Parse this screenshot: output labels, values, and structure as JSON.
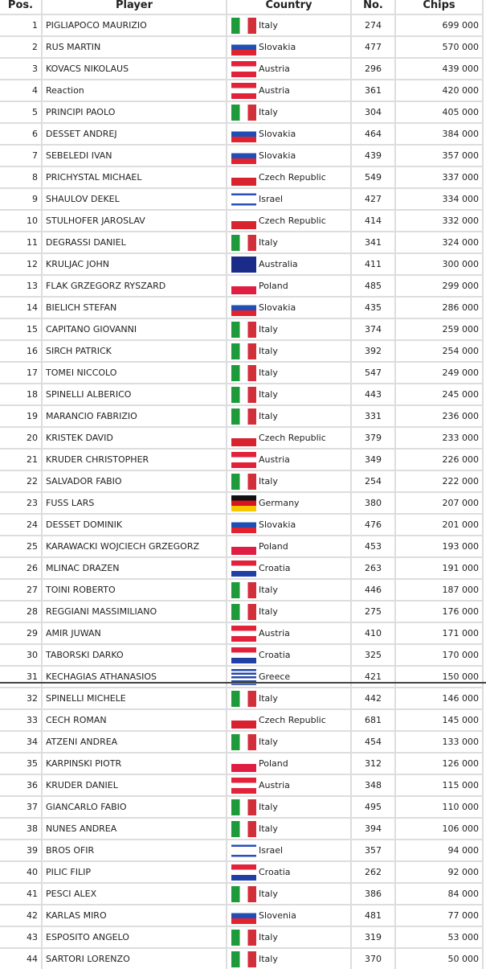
{
  "headers": [
    "Pos.",
    "Player",
    "Country",
    "No.",
    "Chips"
  ],
  "flag_colors": {
    "Italy": "linear-gradient(90deg,#1e9a3a 0 34%,#fff 34% 66%,#d32f3a 66%)",
    "Slovakia": "linear-gradient(#fff 0 33%,#1f4fb5 33% 66%,#e2222f 66%)",
    "Austria": "linear-gradient(#e2223a 0 33%,#fff 33% 66%,#e2223a 66%)",
    "Czech Republic": "linear-gradient(#fff 0 50%,#d8232f 50%)",
    "Israel": "linear-gradient(#fff 0 12%,#2a4fb8 12% 24%,#fff 24% 76%,#2a4fb8 76% 88%,#fff 88%)",
    "Australia": "#1a2b8a",
    "Poland": "linear-gradient(#fff 0 50%,#e01e44 50%)",
    "Germany": "linear-gradient(#111 0 33%,#d8141e 33% 66%,#f7c800 66%)",
    "Croatia": "linear-gradient(#e2223a 0 33%,#fff 33% 66%,#1f3fa5 66%)",
    "Greece": "repeating-linear-gradient(#2346a8 0 2.3px,#fff 2.3px 4.6px)",
    "Slovenia": "linear-gradient(#fff 0 33%,#1f4fb5 33% 66%,#e2222f 66%)"
  },
  "rows": [
    [
      "1",
      "PIGLIAPOCO MAURIZIO",
      "Italy",
      "274",
      "699 000"
    ],
    [
      "2",
      "RUS MARTIN",
      "Slovakia",
      "477",
      "570 000"
    ],
    [
      "3",
      "KOVACS NIKOLAUS",
      "Austria",
      "296",
      "439 000"
    ],
    [
      "4",
      "Reaction",
      "Austria",
      "361",
      "420 000"
    ],
    [
      "5",
      "PRINCIPI PAOLO",
      "Italy",
      "304",
      "405 000"
    ],
    [
      "6",
      "DESSET ANDREJ",
      "Slovakia",
      "464",
      "384 000"
    ],
    [
      "7",
      "SEBELEDI IVAN",
      "Slovakia",
      "439",
      "357 000"
    ],
    [
      "8",
      "PRICHYSTAL MICHAEL",
      "Czech Republic",
      "549",
      "337 000"
    ],
    [
      "9",
      "SHAULOV DEKEL",
      "Israel",
      "427",
      "334 000"
    ],
    [
      "10",
      "STULHOFER JAROSLAV",
      "Czech Republic",
      "414",
      "332 000"
    ],
    [
      "11",
      "DEGRASSI DANIEL",
      "Italy",
      "341",
      "324 000"
    ],
    [
      "12",
      "KRULJAC JOHN",
      "Australia",
      "411",
      "300 000"
    ],
    [
      "13",
      "FLAK GRZEGORZ RYSZARD",
      "Poland",
      "485",
      "299 000"
    ],
    [
      "14",
      "BIELICH STEFAN",
      "Slovakia",
      "435",
      "286 000"
    ],
    [
      "15",
      "CAPITANO GIOVANNI",
      "Italy",
      "374",
      "259 000"
    ],
    [
      "16",
      "SIRCH PATRICK",
      "Italy",
      "392",
      "254 000"
    ],
    [
      "17",
      "TOMEI NICCOLO",
      "Italy",
      "547",
      "249 000"
    ],
    [
      "18",
      "SPINELLI ALBERICO",
      "Italy",
      "443",
      "245 000"
    ],
    [
      "19",
      "MARANCIO FABRIZIO",
      "Italy",
      "331",
      "236 000"
    ],
    [
      "20",
      "KRISTEK DAVID",
      "Czech Republic",
      "379",
      "233 000"
    ],
    [
      "21",
      "KRUDER CHRISTOPHER",
      "Austria",
      "349",
      "226 000"
    ],
    [
      "22",
      "SALVADOR FABIO",
      "Italy",
      "254",
      "222 000"
    ],
    [
      "23",
      "FUSS LARS",
      "Germany",
      "380",
      "207 000"
    ],
    [
      "24",
      "DESSET DOMINIK",
      "Slovakia",
      "476",
      "201 000"
    ],
    [
      "25",
      "KARAWACKI WOJCIECH GRZEGORZ",
      "Poland",
      "453",
      "193 000"
    ],
    [
      "26",
      "MLINAC DRAZEN",
      "Croatia",
      "263",
      "191 000"
    ],
    [
      "27",
      "TOINI ROBERTO",
      "Italy",
      "446",
      "187 000"
    ],
    [
      "28",
      "REGGIANI MASSIMILIANO",
      "Italy",
      "275",
      "176 000"
    ],
    [
      "29",
      "AMIR JUWAN",
      "Austria",
      "410",
      "171 000"
    ],
    [
      "30",
      "TABORSKI DARKO",
      "Croatia",
      "325",
      "170 000"
    ],
    [
      "31",
      "KECHAGIAS ATHANASIOS",
      "Greece",
      "421",
      "150 000"
    ],
    [
      "32",
      "SPINELLI MICHELE",
      "Italy",
      "442",
      "146 000"
    ],
    [
      "33",
      "CECH ROMAN",
      "Czech Republic",
      "681",
      "145 000"
    ],
    [
      "34",
      "ATZENI ANDREA",
      "Italy",
      "454",
      "133 000"
    ],
    [
      "35",
      "KARPINSKI PIOTR",
      "Poland",
      "312",
      "126 000"
    ],
    [
      "36",
      "KRUDER DANIEL",
      "Austria",
      "348",
      "115 000"
    ],
    [
      "37",
      "GIANCARLO FABIO",
      "Italy",
      "495",
      "110 000"
    ],
    [
      "38",
      "NUNES ANDREA",
      "Italy",
      "394",
      "106 000"
    ],
    [
      "39",
      "BROS OFIR",
      "Israel",
      "357",
      "94 000"
    ],
    [
      "40",
      "PILIC FILIP",
      "Croatia",
      "262",
      "92 000"
    ],
    [
      "41",
      "PESCI ALEX",
      "Italy",
      "386",
      "84 000"
    ],
    [
      "42",
      "KARLAS MIRO",
      "Slovenia",
      "481",
      "77 000"
    ],
    [
      "43",
      "ESPOSITO ANGELO",
      "Italy",
      "319",
      "53 000"
    ],
    [
      "44",
      "SARTORI LORENZO",
      "Italy",
      "370",
      "50 000"
    ]
  ]
}
